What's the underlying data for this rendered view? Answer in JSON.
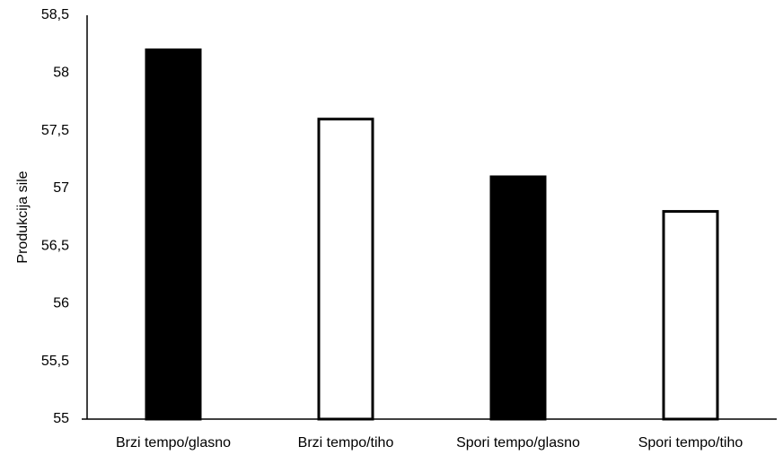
{
  "chart_data": {
    "type": "bar",
    "categories": [
      "Brzi tempo/glasno",
      "Brzi tempo/tiho",
      "Spori tempo/glasno",
      "Spori tempo/tiho"
    ],
    "values": [
      58.2,
      57.6,
      57.1,
      56.8
    ],
    "colors": [
      "#000000",
      "#ffffff",
      "#000000",
      "#ffffff"
    ],
    "edgecolor": "#000000",
    "ylabel": "Produkcija sile",
    "ylim": [
      55,
      58.5
    ],
    "yticks": [
      55,
      {
        "value": 55.5,
        "label": "55,5"
      },
      56,
      {
        "value": 56.5,
        "label": "56,5"
      },
      57,
      {
        "value": 57.5,
        "label": "57,5"
      },
      58,
      {
        "value": 58.5,
        "label": "58,5"
      }
    ],
    "grid": false
  }
}
